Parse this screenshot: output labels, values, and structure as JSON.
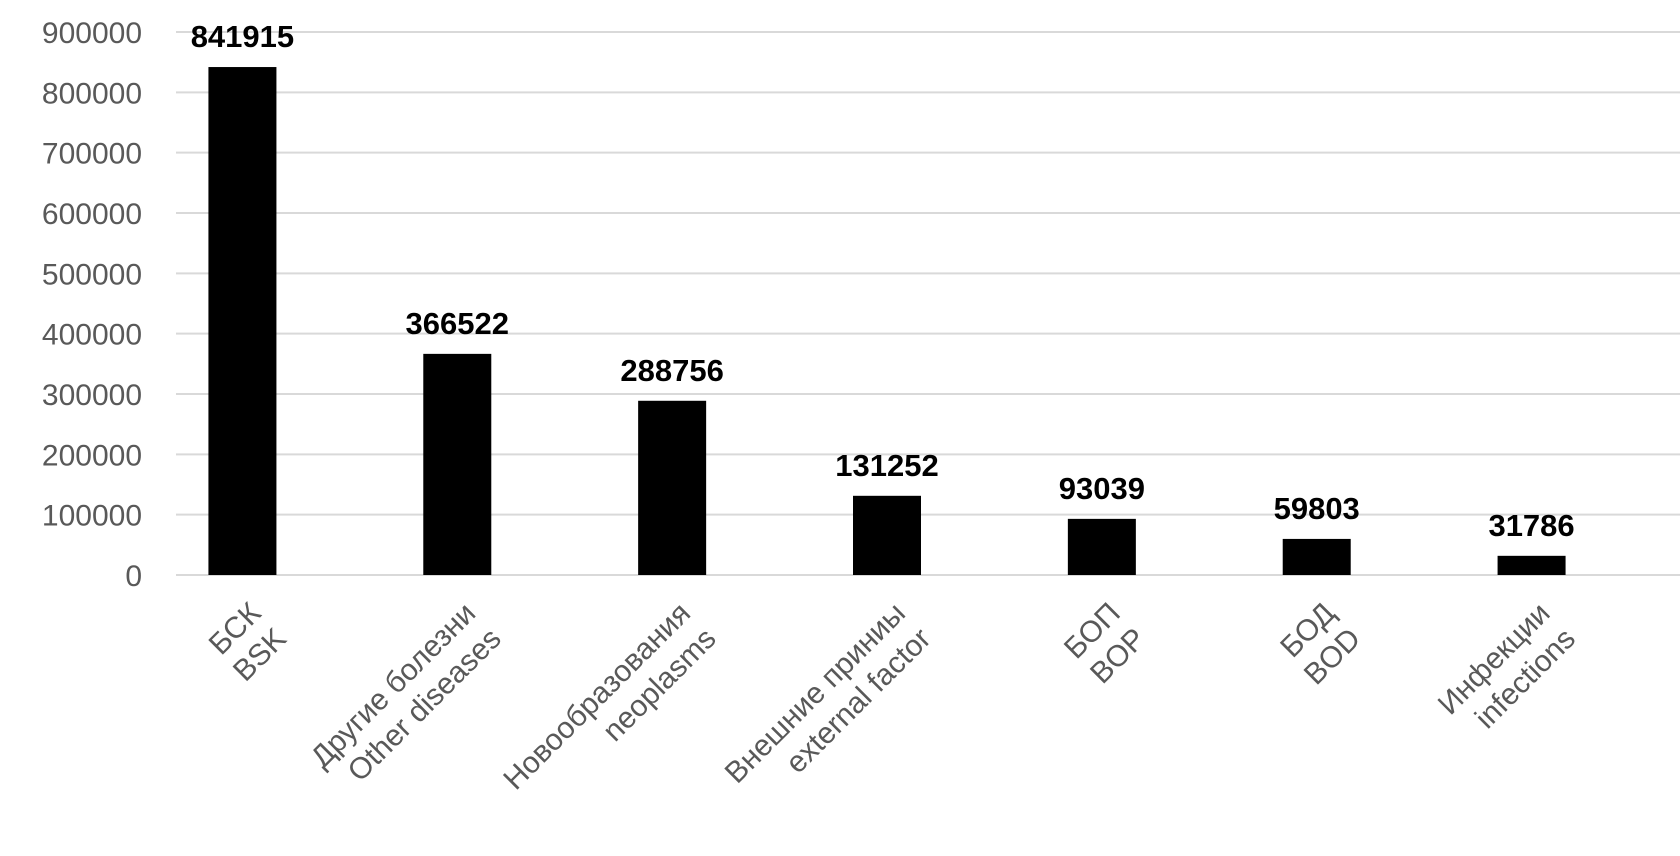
{
  "chart_data": {
    "type": "bar",
    "title": "",
    "xlabel": "",
    "ylabel": "",
    "categories": [
      [
        "БСК",
        "BSK"
      ],
      [
        "Другие болезни",
        "Other diseases"
      ],
      [
        "Новообразования",
        "neoplasms"
      ],
      [
        "Внешние приниы",
        "external factor"
      ],
      [
        "БОП",
        "BOP"
      ],
      [
        "БОД",
        "BOD"
      ],
      [
        "Инфекции",
        "infections"
      ]
    ],
    "values": [
      841915,
      366522,
      288756,
      131252,
      93039,
      59803,
      31786
    ],
    "ylim": [
      0,
      900000
    ],
    "yticks": [
      "0",
      "100000",
      "200000",
      "300000",
      "400000",
      "500000",
      "600000",
      "700000",
      "800000",
      "900000"
    ],
    "data_labels": [
      "841915",
      "366522",
      "288756",
      "131252",
      "93039",
      "59803",
      "31786"
    ],
    "grid": true,
    "legend": "none",
    "bar_color": "#000000",
    "grid_color": "#d9d9d9"
  }
}
